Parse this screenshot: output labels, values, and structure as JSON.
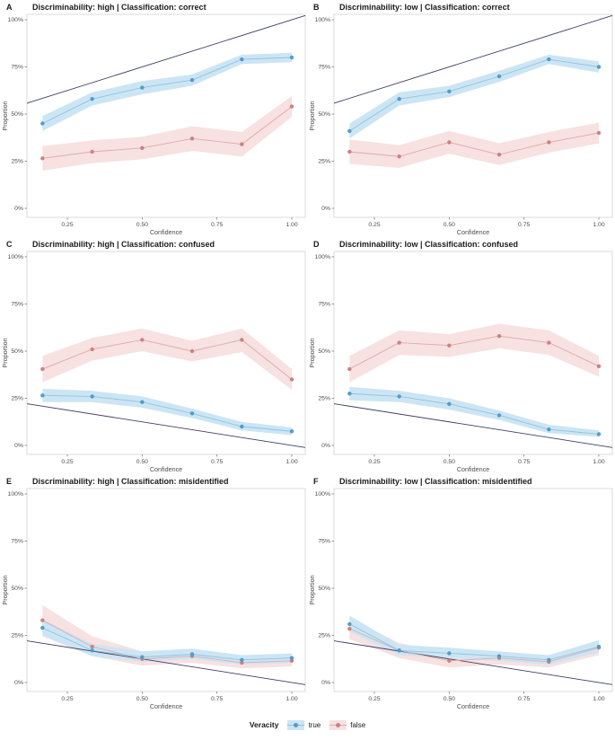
{
  "axes": {
    "x_label": "Confidence",
    "y_label": "Proportion",
    "x_ticks": [
      "0.25",
      "0.50",
      "0.75",
      "1.00"
    ],
    "x_tick_values": [
      0.25,
      0.5,
      0.75,
      1.0
    ],
    "y_ticks": [
      "0%",
      "25%",
      "50%",
      "75%",
      "100%"
    ],
    "y_tick_values": [
      0,
      25,
      50,
      75,
      100
    ],
    "grid": "off",
    "legend_position": "bottom"
  },
  "colors": {
    "true_point": "#4f9dca",
    "true_line": "#8ec4de",
    "true_ribbon": "#cce5f4",
    "false_point": "#cd8181",
    "false_line": "#ddabab",
    "false_ribbon": "#f7e1e1",
    "ref_line": "#3f3f66",
    "title_text": "#1a1a1a",
    "tick_text": "#4d4d4d",
    "panel_border": "#d3d3d3"
  },
  "legend": {
    "title": "Veracity",
    "items": [
      {
        "label": "true",
        "key": "true"
      },
      {
        "label": "false",
        "key": "false"
      }
    ]
  },
  "chart_data": [
    {
      "panel": "A",
      "type": "line",
      "title": "Discriminability: high | Classification: correct",
      "x_label": "Confidence",
      "y_label": "Proportion",
      "x": [
        0.167,
        0.333,
        0.5,
        0.667,
        0.833,
        1.0
      ],
      "xlim": [
        0.115,
        1.045
      ],
      "ylim_pct": [
        -4.8,
        102.9
      ],
      "series": [
        {
          "name": "false",
          "values": [
            26.5,
            30,
            32,
            37,
            34,
            54
          ],
          "lower": [
            20,
            24,
            26,
            30.5,
            27.5,
            48.5
          ],
          "upper": [
            33,
            36,
            38,
            43.5,
            40.5,
            59.5
          ]
        },
        {
          "name": "true",
          "values": [
            45,
            58,
            64,
            68,
            79,
            80
          ],
          "lower": [
            41,
            54.5,
            60.5,
            65,
            76.5,
            77.5
          ],
          "upper": [
            49,
            61.5,
            67.5,
            71,
            81.5,
            82.5
          ]
        }
      ],
      "ref_line": {
        "x": [
          0.115,
          1.045
        ],
        "y_pct": [
          55.75,
          102.25
        ]
      }
    },
    {
      "panel": "B",
      "type": "line",
      "title": "Discriminability: low | Classification: correct",
      "x_label": "Confidence",
      "y_label": "Proportion",
      "x": [
        0.167,
        0.333,
        0.5,
        0.667,
        0.833,
        1.0
      ],
      "xlim": [
        0.115,
        1.045
      ],
      "ylim_pct": [
        -4.8,
        102.9
      ],
      "series": [
        {
          "name": "false",
          "values": [
            30,
            27.5,
            35,
            28.5,
            35,
            40
          ],
          "lower": [
            23.5,
            21.5,
            29,
            23,
            29.5,
            34.5
          ],
          "upper": [
            36.5,
            33.5,
            41,
            34.5,
            40.5,
            45.5
          ]
        },
        {
          "name": "true",
          "values": [
            41,
            58,
            62,
            70,
            79,
            75
          ],
          "lower": [
            37,
            54.5,
            59,
            67,
            76.5,
            72
          ],
          "upper": [
            45,
            61.5,
            65,
            73,
            81.5,
            78
          ]
        }
      ],
      "ref_line": {
        "x": [
          0.115,
          1.045
        ],
        "y_pct": [
          55.75,
          102.25
        ]
      }
    },
    {
      "panel": "C",
      "type": "line",
      "title": "Discriminability: high | Classification: confused",
      "x_label": "Confidence",
      "y_label": "Proportion",
      "x": [
        0.167,
        0.333,
        0.5,
        0.667,
        0.833,
        1.0
      ],
      "xlim": [
        0.115,
        1.045
      ],
      "ylim_pct": [
        -4.8,
        102.9
      ],
      "series": [
        {
          "name": "false",
          "values": [
            40.5,
            51,
            56,
            50,
            56,
            35
          ],
          "lower": [
            33.5,
            45,
            50,
            44.5,
            49.5,
            29.5
          ],
          "upper": [
            47.5,
            57,
            62,
            55.5,
            62,
            40.5
          ]
        },
        {
          "name": "true",
          "values": [
            26.5,
            26,
            23,
            17,
            10,
            7.5
          ],
          "lower": [
            23,
            23,
            20,
            14.5,
            8,
            5.5
          ],
          "upper": [
            30,
            29,
            26,
            19.5,
            12.5,
            9.5
          ]
        }
      ],
      "ref_line": {
        "x": [
          0.115,
          1.045
        ],
        "y_pct": [
          22.1,
          -1.1
        ]
      }
    },
    {
      "panel": "D",
      "type": "line",
      "title": "Discriminability: low | Classification: confused",
      "x_label": "Confidence",
      "y_label": "Proportion",
      "x": [
        0.167,
        0.333,
        0.5,
        0.667,
        0.833,
        1.0
      ],
      "xlim": [
        0.115,
        1.045
      ],
      "ylim_pct": [
        -4.8,
        102.9
      ],
      "series": [
        {
          "name": "false",
          "values": [
            40.5,
            54.5,
            53,
            58,
            54.5,
            42
          ],
          "lower": [
            33.5,
            48,
            47,
            51.5,
            48,
            36.5
          ],
          "upper": [
            47.5,
            61,
            59,
            64.5,
            61,
            47.5
          ]
        },
        {
          "name": "true",
          "values": [
            27.5,
            26,
            22,
            16,
            8.5,
            6
          ],
          "lower": [
            24,
            23,
            19,
            13.5,
            6.5,
            4.5
          ],
          "upper": [
            31,
            29,
            25,
            18.5,
            11,
            8
          ]
        }
      ],
      "ref_line": {
        "x": [
          0.115,
          1.045
        ],
        "y_pct": [
          22.1,
          -1.1
        ]
      }
    },
    {
      "panel": "E",
      "type": "line",
      "title": "Discriminability: high | Classification: misidentified",
      "x_label": "Confidence",
      "y_label": "Proportion",
      "x": [
        0.167,
        0.333,
        0.5,
        0.667,
        0.833,
        1.0
      ],
      "xlim": [
        0.115,
        1.045
      ],
      "ylim_pct": [
        -4.8,
        102.9
      ],
      "series": [
        {
          "name": "false",
          "values": [
            33,
            19,
            12.5,
            14,
            10.5,
            11.5
          ],
          "lower": [
            24.5,
            14,
            9,
            10.5,
            7.5,
            8.5
          ],
          "upper": [
            41,
            24.5,
            16.5,
            18,
            13.5,
            15
          ]
        },
        {
          "name": "true",
          "values": [
            29,
            17,
            13.5,
            15,
            12,
            13
          ],
          "lower": [
            25,
            14,
            11,
            12.5,
            9.5,
            10.5
          ],
          "upper": [
            33.5,
            20.5,
            16.5,
            18,
            14.5,
            15.5
          ]
        }
      ],
      "ref_line": {
        "x": [
          0.115,
          1.045
        ],
        "y_pct": [
          22.1,
          -1.1
        ]
      }
    },
    {
      "panel": "F",
      "type": "line",
      "title": "Discriminability: low | Classification: misidentified",
      "x_label": "Confidence",
      "y_label": "Proportion",
      "x": [
        0.167,
        0.333,
        0.5,
        0.667,
        0.833,
        1.0
      ],
      "xlim": [
        0.115,
        1.045
      ],
      "ylim_pct": [
        -4.8,
        102.9
      ],
      "series": [
        {
          "name": "false",
          "values": [
            28.5,
            17,
            11.5,
            13,
            11,
            18.5
          ],
          "lower": [
            23,
            13,
            8,
            9.5,
            8,
            14.5
          ],
          "upper": [
            34,
            21,
            15,
            16.5,
            14,
            22.5
          ]
        },
        {
          "name": "true",
          "values": [
            31,
            17,
            15.5,
            14,
            12,
            19
          ],
          "lower": [
            27,
            14.5,
            13,
            11.5,
            9.5,
            16
          ],
          "upper": [
            35.5,
            20,
            18.5,
            16.5,
            14.5,
            22.5
          ]
        }
      ],
      "ref_line": {
        "x": [
          0.115,
          1.045
        ],
        "y_pct": [
          22.1,
          -1.1
        ]
      }
    }
  ]
}
